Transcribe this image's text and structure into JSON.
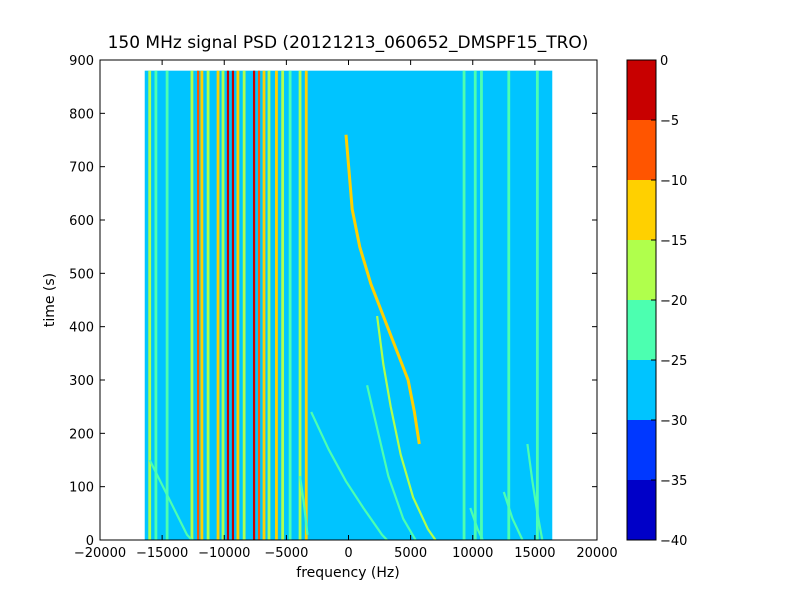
{
  "chart_data": {
    "type": "heatmap",
    "title": "150 MHz signal PSD (20121213_060652_DMSPF15_TRO)",
    "xlabel": "frequency (Hz)",
    "ylabel": "time (s)",
    "xlim": [
      -20000,
      20000
    ],
    "ylim": [
      0,
      900
    ],
    "x_ticks": [
      -20000,
      -15000,
      -10000,
      -5000,
      0,
      5000,
      10000,
      15000,
      20000
    ],
    "x_tick_labels": [
      "−20000",
      "−15000",
      "−10000",
      "−5000",
      "0",
      "5000",
      "10000",
      "15000",
      "20000"
    ],
    "y_ticks": [
      0,
      100,
      200,
      300,
      400,
      500,
      600,
      700,
      800,
      900
    ],
    "y_tick_labels": [
      "0",
      "100",
      "200",
      "300",
      "400",
      "500",
      "600",
      "700",
      "800",
      "900"
    ],
    "data_extent": {
      "x": [
        -16400,
        16400
      ],
      "y": [
        0,
        880
      ]
    },
    "background_level": -27.5,
    "vertical_lines": [
      {
        "x": -16000,
        "level": -17.5
      },
      {
        "x": -15500,
        "level": -22.5
      },
      {
        "x": -14600,
        "level": -22.5
      },
      {
        "x": -12600,
        "level": -17.5
      },
      {
        "x": -12100,
        "level": -7.5
      },
      {
        "x": -11800,
        "level": -12.5
      },
      {
        "x": -11300,
        "level": -17.5
      },
      {
        "x": -10500,
        "level": -12.5
      },
      {
        "x": -10100,
        "level": -17.5
      },
      {
        "x": -9700,
        "level": -2.5
      },
      {
        "x": -9300,
        "level": -2.5
      },
      {
        "x": -8900,
        "level": -12.5
      },
      {
        "x": -8400,
        "level": -17.5
      },
      {
        "x": -7600,
        "level": -2.5
      },
      {
        "x": -7200,
        "level": -7.5
      },
      {
        "x": -6800,
        "level": -12.5
      },
      {
        "x": -6400,
        "level": -17.5
      },
      {
        "x": -5800,
        "level": -12.5
      },
      {
        "x": -5300,
        "level": -17.5
      },
      {
        "x": -4700,
        "level": -22.5
      },
      {
        "x": -3900,
        "level": -17.5
      },
      {
        "x": -3400,
        "level": -12.5
      },
      {
        "x": 9300,
        "level": -22.5
      },
      {
        "x": 10200,
        "level": -22.5
      },
      {
        "x": 10700,
        "level": -22.5
      },
      {
        "x": 12900,
        "level": -22.5
      },
      {
        "x": 15200,
        "level": -22.5
      }
    ],
    "curves": [
      {
        "level": -12.5,
        "points": [
          [
            -200,
            760
          ],
          [
            300,
            620
          ],
          [
            900,
            550
          ],
          [
            1800,
            480
          ],
          [
            2800,
            420
          ],
          [
            3800,
            360
          ],
          [
            4800,
            300
          ],
          [
            5300,
            240
          ],
          [
            5700,
            180
          ]
        ]
      },
      {
        "level": -17.5,
        "points": [
          [
            2300,
            420
          ],
          [
            2800,
            330
          ],
          [
            3400,
            250
          ],
          [
            4200,
            160
          ],
          [
            5200,
            80
          ],
          [
            6400,
            20
          ],
          [
            7000,
            0
          ]
        ]
      },
      {
        "level": -22.5,
        "points": [
          [
            -3000,
            240
          ],
          [
            -1600,
            170
          ],
          [
            -200,
            110
          ],
          [
            1200,
            60
          ],
          [
            2700,
            10
          ],
          [
            3100,
            0
          ]
        ]
      },
      {
        "level": -22.5,
        "points": [
          [
            -16000,
            150
          ],
          [
            -14500,
            80
          ],
          [
            -13000,
            10
          ],
          [
            -12600,
            0
          ]
        ]
      },
      {
        "level": -22.5,
        "points": [
          [
            -3900,
            120
          ],
          [
            -3600,
            70
          ],
          [
            -3300,
            10
          ]
        ]
      },
      {
        "level": -22.5,
        "points": [
          [
            1500,
            290
          ],
          [
            2400,
            200
          ],
          [
            3200,
            120
          ],
          [
            4400,
            40
          ],
          [
            5400,
            0
          ]
        ]
      },
      {
        "level": -22.5,
        "points": [
          [
            14400,
            180
          ],
          [
            14800,
            110
          ],
          [
            15200,
            50
          ],
          [
            15600,
            0
          ]
        ]
      },
      {
        "level": -22.5,
        "points": [
          [
            12500,
            90
          ],
          [
            13200,
            40
          ],
          [
            14000,
            0
          ]
        ]
      },
      {
        "level": -22.5,
        "points": [
          [
            9800,
            60
          ],
          [
            10400,
            20
          ],
          [
            10800,
            0
          ]
        ]
      }
    ],
    "colorbar": {
      "boundaries": [
        -40,
        -35,
        -30,
        -25,
        -20,
        -15,
        -10,
        -5,
        0
      ],
      "tick_labels": [
        "−40",
        "−35",
        "−30",
        "−25",
        "−20",
        "−15",
        "−10",
        "−5",
        "0"
      ],
      "colors": [
        "#0000c8",
        "#0038ff",
        "#00c4ff",
        "#4cffb0",
        "#b0ff4c",
        "#ffd000",
        "#ff5500",
        "#c80000"
      ]
    }
  }
}
